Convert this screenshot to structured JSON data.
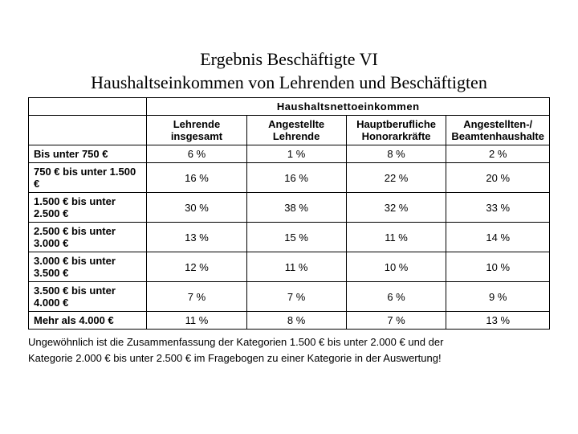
{
  "title_line1": "Ergebnis Beschäftigte VI",
  "title_line2": "Haushaltseinkommen von Lehrenden und Beschäftigten",
  "table": {
    "merged_header": "Haushaltsnettoeinkommen",
    "columns": [
      "Lehrende insgesamt",
      "Angestellte Lehrende",
      "Hauptberufliche Honorarkräfte",
      "Angestellten-/ Beamtenhaushalte"
    ],
    "rows": [
      {
        "label": "Bis unter 750 €",
        "values": [
          "6 %",
          "1 %",
          "8 %",
          "2 %"
        ]
      },
      {
        "label": "750 € bis unter 1.500 €",
        "values": [
          "16 %",
          "16 %",
          "22 %",
          "20 %"
        ]
      },
      {
        "label": "1.500 € bis unter 2.500 €",
        "values": [
          "30 %",
          "38 %",
          "32 %",
          "33 %"
        ]
      },
      {
        "label": "2.500 € bis unter 3.000 €",
        "values": [
          "13 %",
          "15 %",
          "11 %",
          "14 %"
        ]
      },
      {
        "label": "3.000 € bis unter 3.500 €",
        "values": [
          "12 %",
          "11 %",
          "10 %",
          "10 %"
        ]
      },
      {
        "label": "3.500 € bis unter 4.000 €",
        "values": [
          "7 %",
          "7 %",
          "6 %",
          "9 %"
        ]
      },
      {
        "label": "Mehr als 4.000 €",
        "values": [
          "11 %",
          "8 %",
          "7 %",
          "13 %"
        ]
      }
    ]
  },
  "footnote_line1": "Ungewöhnlich ist die Zusammenfassung der Kategorien 1.500 € bis unter 2.000 € und der",
  "footnote_line2": "Kategorie 2.000 € bis unter 2.500 € im Fragebogen zu einer Kategorie in der Auswertung!",
  "colors": {
    "border": "#000000",
    "text": "#000000",
    "background": "#ffffff"
  },
  "typography": {
    "title_font": "Times New Roman",
    "title_size_pt": 18,
    "body_font": "Arial",
    "body_size_pt": 10
  }
}
